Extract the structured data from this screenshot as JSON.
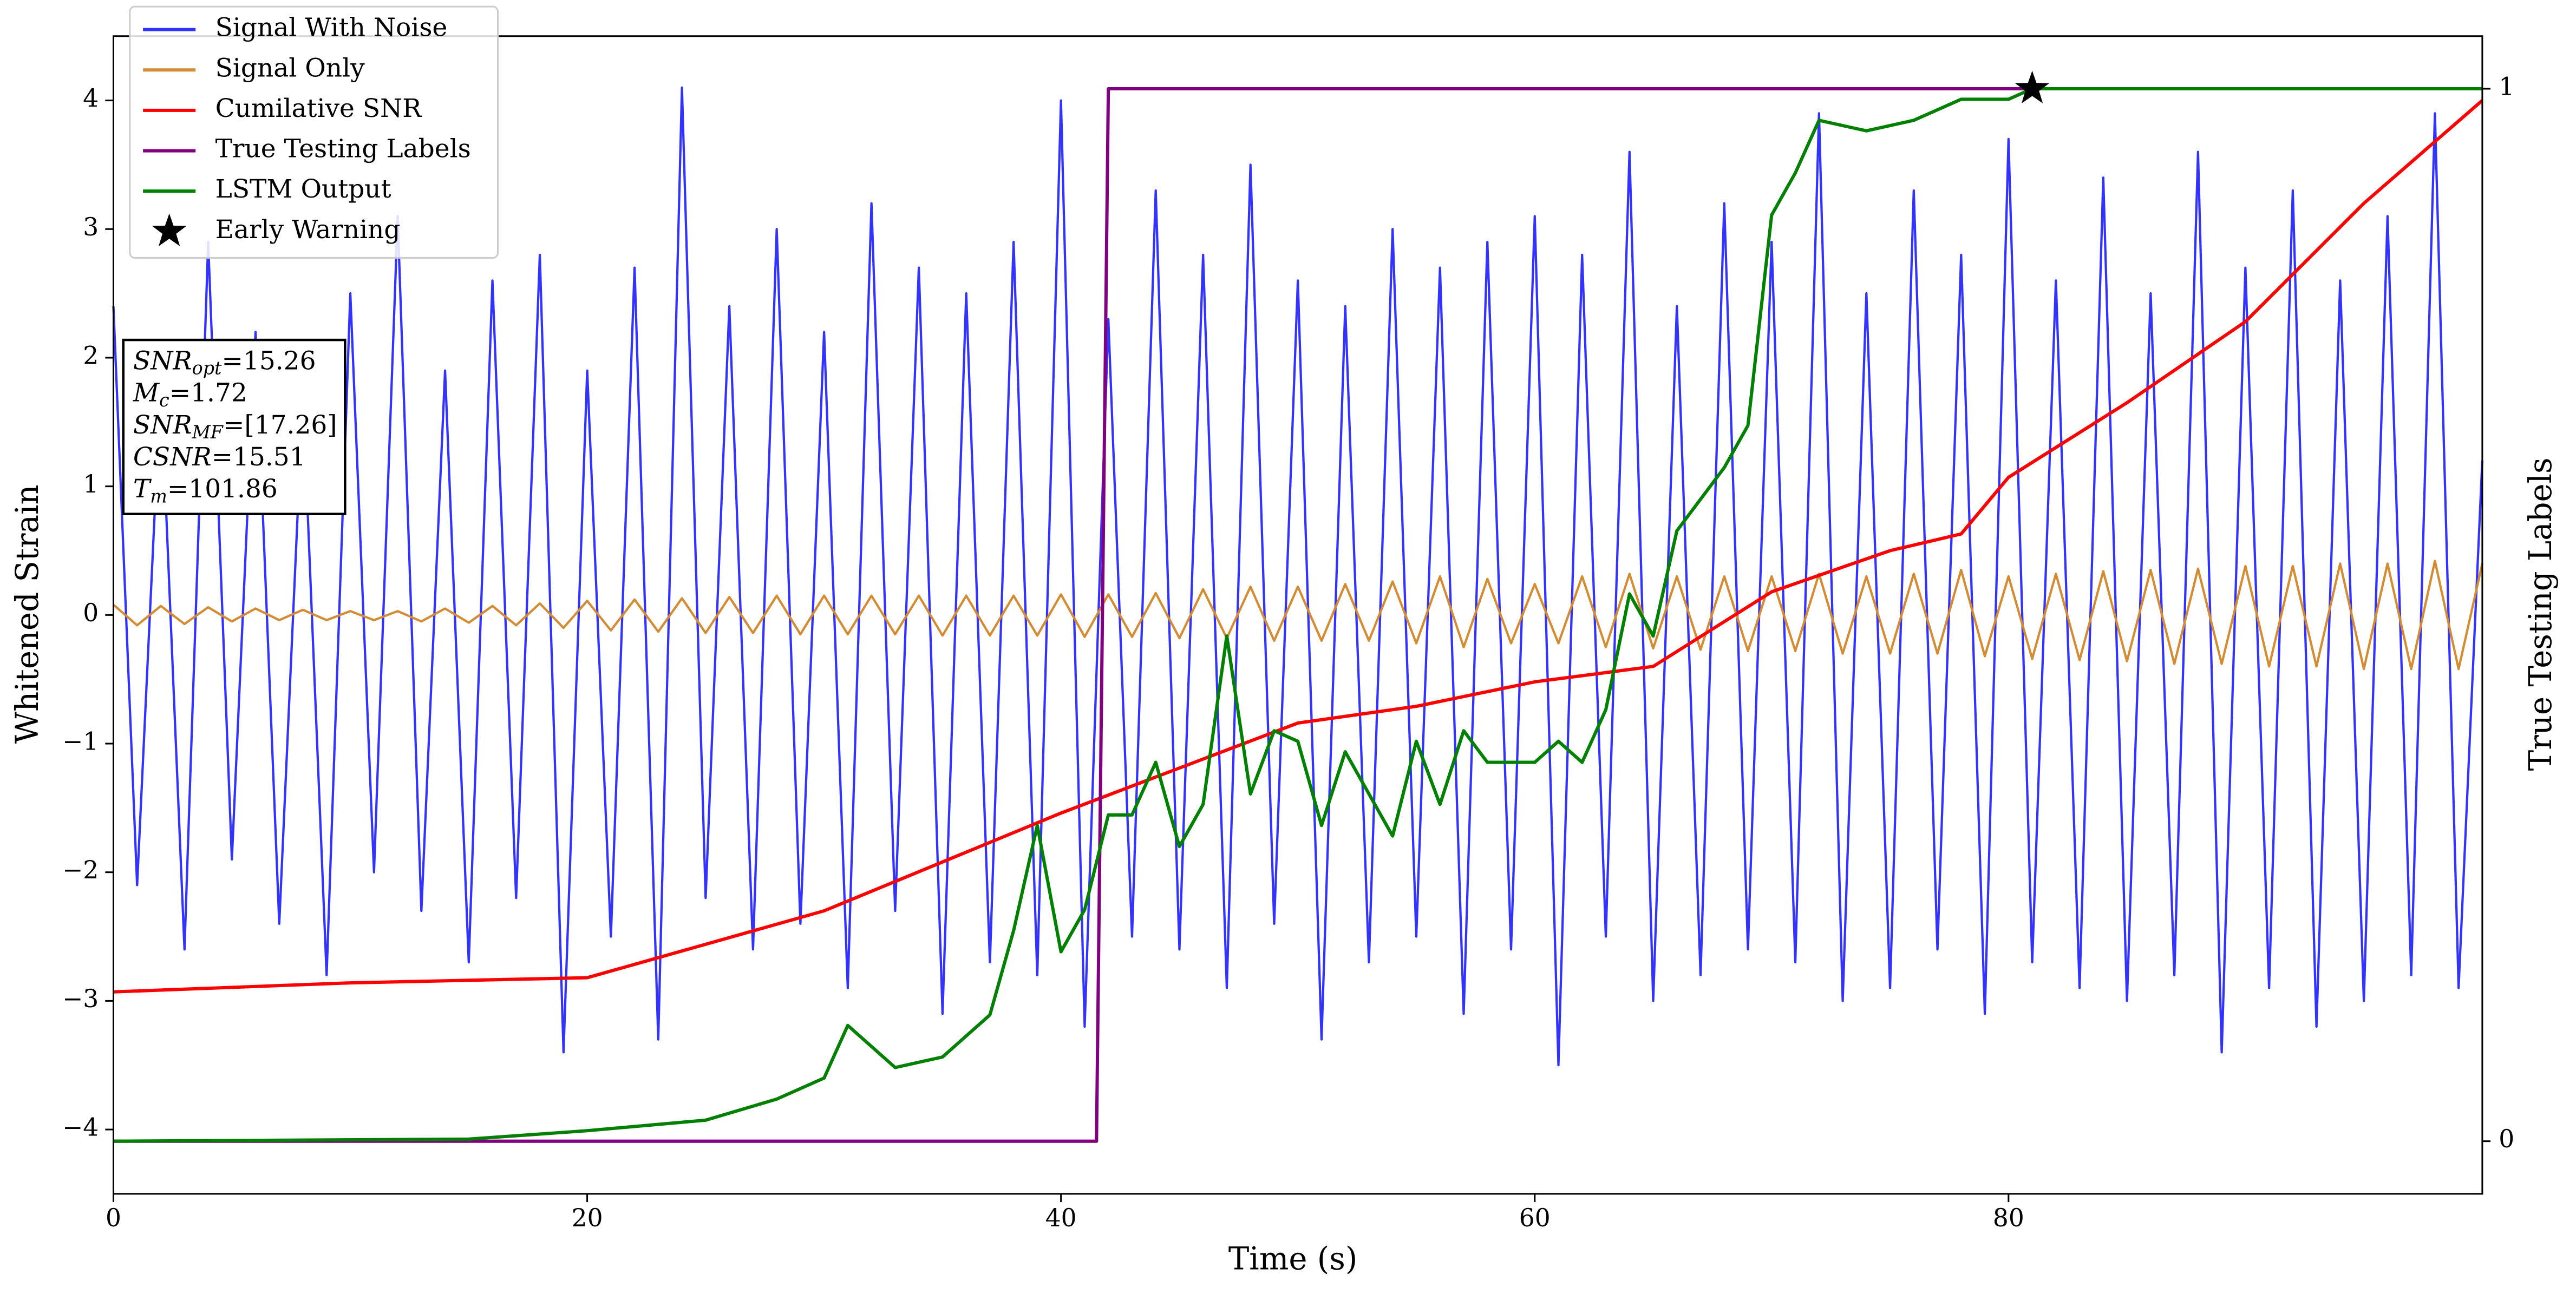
{
  "chart_data": {
    "type": "line",
    "x_label": "Time (s)",
    "y_label": "Whitened Strain",
    "y2_label": "True Testing Labels",
    "xlim": [
      0,
      100
    ],
    "xticks": [
      0,
      20,
      40,
      60,
      80
    ],
    "ylim": [
      -4.5,
      4.5
    ],
    "yticks": [
      {
        "value": -4,
        "label": "−4"
      },
      {
        "value": -3,
        "label": "−3"
      },
      {
        "value": -2,
        "label": "−2"
      },
      {
        "value": -1,
        "label": "−1"
      },
      0,
      1,
      2,
      3,
      4
    ],
    "y2lim": [
      -0.05,
      1.05
    ],
    "y2ticks": [
      0,
      1
    ],
    "legend": "upper left",
    "series": [
      {
        "name": "Signal With Noise",
        "color": "#3333ff",
        "axis": "y",
        "x": [
          0,
          1,
          2,
          3,
          4,
          5,
          6,
          7,
          8,
          9,
          10,
          11,
          12,
          13,
          14,
          15,
          16,
          17,
          18,
          19,
          20,
          21,
          22,
          23,
          24,
          25,
          26,
          27,
          28,
          29,
          30,
          31,
          32,
          33,
          34,
          35,
          36,
          37,
          38,
          39,
          40,
          41,
          42,
          43,
          44,
          45,
          46,
          47,
          48,
          49,
          50,
          51,
          52,
          53,
          54,
          55,
          56,
          57,
          58,
          59,
          60,
          61,
          62,
          63,
          64,
          65,
          66,
          67,
          68,
          69,
          70,
          71,
          72,
          73,
          74,
          75,
          76,
          77,
          78,
          79,
          80,
          81,
          82,
          83,
          84,
          85,
          86,
          87,
          88,
          89,
          90,
          91,
          92,
          93,
          94,
          95,
          96,
          97,
          98,
          99,
          100
        ],
        "values": [
          2.4,
          -2.1,
          1.8,
          -2.6,
          2.9,
          -1.9,
          2.2,
          -2.4,
          1.7,
          -2.8,
          2.5,
          -2.0,
          3.1,
          -2.3,
          1.9,
          -2.7,
          2.6,
          -2.2,
          2.8,
          -3.4,
          1.9,
          -2.5,
          2.7,
          -3.3,
          4.1,
          -2.2,
          2.4,
          -2.6,
          3.0,
          -2.4,
          2.2,
          -2.9,
          3.2,
          -2.3,
          2.7,
          -3.1,
          2.5,
          -2.7,
          2.9,
          -2.8,
          4.0,
          -3.2,
          2.3,
          -2.5,
          3.3,
          -2.6,
          2.8,
          -2.9,
          3.5,
          -2.4,
          2.6,
          -3.3,
          2.4,
          -2.7,
          3.0,
          -2.5,
          2.7,
          -3.1,
          2.9,
          -2.6,
          3.1,
          -3.5,
          2.8,
          -2.5,
          3.6,
          -3.0,
          2.4,
          -2.8,
          3.2,
          -2.6,
          2.9,
          -2.7,
          3.9,
          -3.0,
          2.5,
          -2.9,
          3.3,
          -2.6,
          2.8,
          -3.1,
          3.7,
          -2.7,
          2.6,
          -2.9,
          3.4,
          -3.0,
          2.5,
          -2.8,
          3.6,
          -3.4,
          2.7,
          -2.9,
          3.3,
          -3.2,
          2.6,
          -3.0,
          3.1,
          -2.8,
          3.9,
          -2.9,
          1.2
        ]
      },
      {
        "name": "Signal Only",
        "color": "#d38c34",
        "axis": "y",
        "x": [
          0,
          1,
          2,
          3,
          4,
          5,
          6,
          7,
          8,
          9,
          10,
          11,
          12,
          13,
          14,
          15,
          16,
          17,
          18,
          19,
          20,
          21,
          22,
          23,
          24,
          25,
          26,
          27,
          28,
          29,
          30,
          31,
          32,
          33,
          34,
          35,
          36,
          37,
          38,
          39,
          40,
          41,
          42,
          43,
          44,
          45,
          46,
          47,
          48,
          49,
          50,
          51,
          52,
          53,
          54,
          55,
          56,
          57,
          58,
          59,
          60,
          61,
          62,
          63,
          64,
          65,
          66,
          67,
          68,
          69,
          70,
          71,
          72,
          73,
          74,
          75,
          76,
          77,
          78,
          79,
          80,
          81,
          82,
          83,
          84,
          85,
          86,
          87,
          88,
          89,
          90,
          91,
          92,
          93,
          94,
          95,
          96,
          97,
          98,
          99,
          100
        ],
        "values": [
          0.08,
          -0.08,
          0.07,
          -0.07,
          0.06,
          -0.05,
          0.05,
          -0.04,
          0.04,
          -0.04,
          0.03,
          -0.04,
          0.03,
          -0.05,
          0.05,
          -0.06,
          0.07,
          -0.08,
          0.09,
          -0.1,
          0.11,
          -0.12,
          0.12,
          -0.13,
          0.13,
          -0.14,
          0.14,
          -0.14,
          0.15,
          -0.15,
          0.15,
          -0.15,
          0.15,
          -0.15,
          0.15,
          -0.16,
          0.15,
          -0.16,
          0.15,
          -0.16,
          0.16,
          -0.17,
          0.16,
          -0.17,
          0.17,
          -0.18,
          0.2,
          -0.18,
          0.22,
          -0.2,
          0.22,
          -0.2,
          0.24,
          -0.2,
          0.26,
          -0.22,
          0.3,
          -0.25,
          0.28,
          -0.22,
          0.24,
          -0.22,
          0.3,
          -0.25,
          0.32,
          -0.26,
          0.3,
          -0.27,
          0.3,
          -0.28,
          0.3,
          -0.28,
          0.32,
          -0.3,
          0.3,
          -0.3,
          0.32,
          -0.3,
          0.35,
          -0.32,
          0.3,
          -0.34,
          0.32,
          -0.35,
          0.34,
          -0.36,
          0.35,
          -0.38,
          0.36,
          -0.38,
          0.38,
          -0.4,
          0.38,
          -0.4,
          0.4,
          -0.42,
          0.4,
          -0.42,
          0.42,
          -0.42,
          0.4
        ]
      },
      {
        "name": "Cumilative SNR",
        "color": "#ff0000",
        "axis": "y",
        "x": [
          0,
          10,
          20,
          30,
          40,
          50,
          55,
          60,
          65,
          70,
          75,
          78,
          80,
          85,
          90,
          95,
          100
        ],
        "values": [
          -2.93,
          -2.86,
          -2.82,
          -2.3,
          -1.54,
          -0.84,
          -0.71,
          -0.52,
          -0.4,
          0.18,
          0.5,
          0.63,
          1.07,
          1.65,
          2.28,
          3.2,
          4.0
        ]
      },
      {
        "name": "True Testing Labels",
        "color": "#800080",
        "axis": "y2",
        "x": [
          0,
          41.5,
          42,
          100
        ],
        "values": [
          0,
          0,
          1,
          1
        ]
      },
      {
        "name": "LSTM Output",
        "color": "#008000",
        "axis": "y2",
        "x": [
          0,
          15,
          20,
          25,
          28,
          30,
          31,
          32,
          33,
          35,
          37,
          38,
          39,
          40,
          41,
          42,
          43,
          44,
          45,
          46,
          47,
          48,
          49,
          50,
          51,
          52,
          53,
          54,
          55,
          56,
          57,
          58,
          60,
          61,
          62,
          63,
          64,
          65,
          66,
          68,
          69,
          70,
          71,
          72,
          74,
          76,
          78,
          80,
          81,
          100
        ],
        "values": [
          0,
          0.002,
          0.01,
          0.02,
          0.04,
          0.06,
          0.11,
          0.09,
          0.07,
          0.08,
          0.12,
          0.2,
          0.3,
          0.18,
          0.22,
          0.31,
          0.31,
          0.36,
          0.28,
          0.32,
          0.48,
          0.33,
          0.39,
          0.38,
          0.3,
          0.37,
          0.33,
          0.29,
          0.38,
          0.32,
          0.39,
          0.36,
          0.36,
          0.38,
          0.36,
          0.41,
          0.52,
          0.48,
          0.58,
          0.64,
          0.68,
          0.88,
          0.92,
          0.97,
          0.96,
          0.97,
          0.99,
          0.99,
          1.0,
          1.0
        ]
      },
      {
        "name": "Early Warning",
        "color": "#000000",
        "axis": "y2",
        "marker": "star",
        "x": [
          81
        ],
        "values": [
          1
        ]
      }
    ],
    "annotation": [
      {
        "main": "SNR",
        "sub": "opt",
        "rest": "=15.26"
      },
      {
        "main": "M",
        "sub": "c",
        "rest": "=1.72"
      },
      {
        "main": "SNR",
        "sub": "MF",
        "rest": "=[17.26]"
      },
      {
        "main": "CSNR",
        "rest": "=15.51"
      },
      {
        "main": "T",
        "sub": "m",
        "rest": "=101.86"
      }
    ]
  }
}
